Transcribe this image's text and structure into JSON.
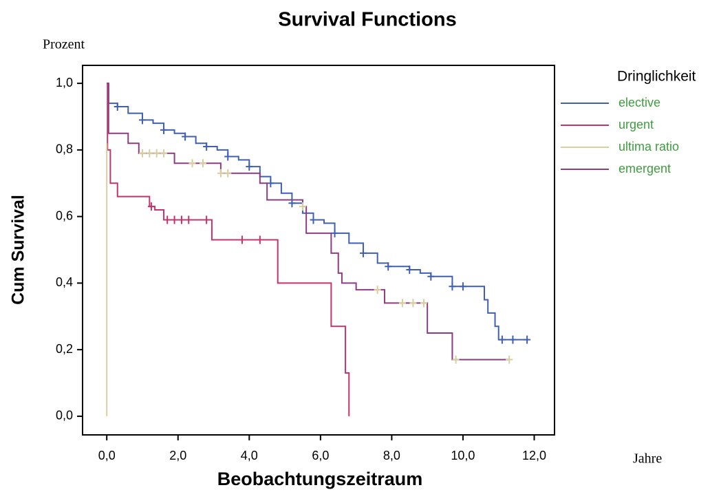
{
  "chart_data": {
    "type": "survival",
    "title": "Survival Functions",
    "y_unit_label": "Prozent",
    "y_label": "Cum Survival",
    "x_label": "Beobachtungszeitraum",
    "x_unit_label": "Jahre",
    "legend_title": "Dringlichkeit",
    "legend_position": "right",
    "xlim": [
      -0.68,
      12.57
    ],
    "ylim": [
      -0.056,
      1.054
    ],
    "xticks": [
      {
        "value": 0,
        "label": "0,0"
      },
      {
        "value": 2,
        "label": "2,0"
      },
      {
        "value": 4,
        "label": "4,0"
      },
      {
        "value": 6,
        "label": "6,0"
      },
      {
        "value": 8,
        "label": "8,0"
      },
      {
        "value": 10,
        "label": "10,0"
      },
      {
        "value": 12,
        "label": "12,0"
      }
    ],
    "yticks": [
      {
        "value": 0,
        "label": "0,0"
      },
      {
        "value": 0.2,
        "label": "0,2"
      },
      {
        "value": 0.4,
        "label": "0,4"
      },
      {
        "value": 0.6,
        "label": "0,6"
      },
      {
        "value": 0.8,
        "label": "0,8"
      },
      {
        "value": 1,
        "label": "1,0"
      }
    ],
    "series": [
      {
        "name": "elective",
        "color": "#3f5fb5",
        "censor_color": "#3f5fb5",
        "x": [
          0,
          0.05,
          0.3,
          0.6,
          1.0,
          1.3,
          1.6,
          1.9,
          2.2,
          2.5,
          2.8,
          3.1,
          3.4,
          3.7,
          4.0,
          4.3,
          4.6,
          4.9,
          5.2,
          5.5,
          5.8,
          6.1,
          6.4,
          6.8,
          7.2,
          7.6,
          7.9,
          8.2,
          8.5,
          8.8,
          9.1,
          9.4,
          9.7,
          10.0,
          10.6,
          10.7,
          10.9,
          11.0,
          11.8
        ],
        "values": [
          1.0,
          0.94,
          0.93,
          0.91,
          0.89,
          0.88,
          0.86,
          0.85,
          0.84,
          0.82,
          0.81,
          0.8,
          0.78,
          0.77,
          0.75,
          0.72,
          0.7,
          0.67,
          0.64,
          0.61,
          0.59,
          0.58,
          0.55,
          0.52,
          0.49,
          0.46,
          0.45,
          0.45,
          0.44,
          0.43,
          0.42,
          0.42,
          0.39,
          0.39,
          0.35,
          0.31,
          0.27,
          0.23,
          0.23
        ],
        "censored": {
          "x": [
            0.3,
            1.0,
            1.6,
            2.2,
            2.8,
            3.4,
            4.0,
            4.6,
            5.2,
            5.8,
            6.4,
            7.2,
            7.9,
            8.5,
            9.1,
            9.7,
            10.0,
            11.1,
            11.4,
            11.8
          ],
          "values": [
            0.93,
            0.89,
            0.86,
            0.84,
            0.81,
            0.78,
            0.75,
            0.7,
            0.64,
            0.59,
            0.55,
            0.49,
            0.45,
            0.44,
            0.42,
            0.39,
            0.39,
            0.23,
            0.23,
            0.23
          ]
        }
      },
      {
        "name": "urgent",
        "color": "#c4336c",
        "censor_color": "#c4336c",
        "x": [
          0,
          0.02,
          0.1,
          0.3,
          1.2,
          1.35,
          1.6,
          2.95,
          4.8,
          6.3,
          6.7,
          6.8
        ],
        "values": [
          1.0,
          0.8,
          0.7,
          0.66,
          0.63,
          0.62,
          0.59,
          0.53,
          0.4,
          0.27,
          0.13,
          0.0
        ],
        "censored": {
          "x": [
            1.25,
            1.7,
            1.9,
            2.1,
            2.3,
            2.8,
            3.8,
            4.3
          ],
          "values": [
            0.63,
            0.59,
            0.59,
            0.59,
            0.59,
            0.59,
            0.53,
            0.53
          ]
        }
      },
      {
        "name": "ultima ratio",
        "color": "#d9cf9e",
        "censor_color": "#d9cf9e",
        "x": [
          0,
          0
        ],
        "values": [
          0.82,
          0.0
        ],
        "censored": {
          "x": [],
          "values": []
        }
      },
      {
        "name": "emergent",
        "color": "#8e3b80",
        "censor_color": "#d9cf9e",
        "x": [
          0,
          0.05,
          0.6,
          0.9,
          1.9,
          3.2,
          4.3,
          4.5,
          5.5,
          5.6,
          6.3,
          6.5,
          6.6,
          7.0,
          7.8,
          9.0,
          9.7,
          11.3
        ],
        "values": [
          1.0,
          0.85,
          0.82,
          0.79,
          0.76,
          0.73,
          0.7,
          0.65,
          0.63,
          0.55,
          0.49,
          0.43,
          0.4,
          0.38,
          0.34,
          0.25,
          0.17,
          0.17
        ],
        "censored": {
          "x": [
            1.0,
            1.2,
            1.4,
            1.6,
            2.4,
            2.7,
            3.2,
            3.4,
            5.5,
            7.6,
            8.3,
            8.6,
            8.9,
            9.8,
            11.3
          ],
          "values": [
            0.79,
            0.79,
            0.79,
            0.79,
            0.76,
            0.76,
            0.73,
            0.73,
            0.63,
            0.38,
            0.34,
            0.34,
            0.34,
            0.17,
            0.17
          ]
        }
      }
    ]
  }
}
